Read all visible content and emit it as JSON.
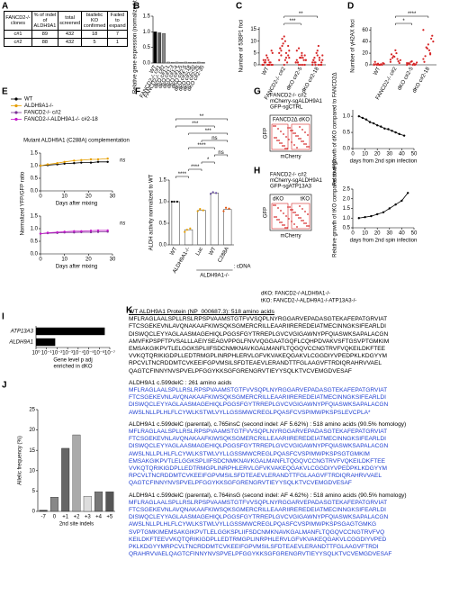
{
  "panel_labels": [
    "A",
    "B",
    "C",
    "D",
    "E",
    "F",
    "G",
    "H",
    "I",
    "J",
    "K"
  ],
  "table": {
    "header": [
      "FANCD2-/- clones",
      "% of indel of ALDH9A1",
      "total screened",
      "biallelic KO confirmed",
      "Failed to expand"
    ],
    "rows": [
      [
        "c#1",
        "89",
        "432",
        "18",
        "7"
      ],
      [
        "c#2",
        "88",
        "432",
        "5",
        "1"
      ]
    ]
  },
  "chart_data": [
    {
      "type": "bar",
      "ylabel": "Relative gene expression (normalized to WT)",
      "categories": [
        "WT",
        "FANCD2-/- c#1",
        "FANCD2-/- c#2",
        "dKO c#1-1",
        "dKO c#1-3",
        "dKO c#1-4",
        "dKO c#1-5",
        "dKO c#2-5",
        "dKO c#2-18",
        "dKO c#2-20",
        "dKO c#2-25",
        "dKO c#2-35"
      ],
      "values": [
        1.0,
        0.97,
        0.95,
        0.03,
        0.02,
        0.03,
        0.02,
        0.03,
        0.02,
        0.02,
        0.03,
        0.02
      ],
      "colors": [
        "#000000",
        "#555555",
        "#888888",
        "#bbbbbb",
        "#bbbbbb",
        "#bbbbbb",
        "#bbbbbb",
        "#bbbbbb",
        "#bbbbbb",
        "#bbbbbb",
        "#bbbbbb",
        "#bbbbbb"
      ],
      "ylim": [
        0,
        1.5
      ],
      "yticks": [
        {
          "value": 0,
          "label": "0.0"
        },
        {
          "value": 0.5,
          "label": "0.5"
        },
        {
          "value": 1,
          "label": "1.0"
        },
        {
          "value": 1.5,
          "label": "1.5"
        }
      ]
    },
    {
      "type": "strip",
      "ylabel": "Number of 53BP1 foci",
      "categories": [
        "WT",
        "FANCD2-/- c#2",
        "dKO c#2-5",
        "dKO c#2-18"
      ],
      "color": "#d62728",
      "groups": [
        [
          0,
          0,
          1,
          0,
          2,
          1,
          0,
          3,
          0,
          1,
          4,
          0,
          1,
          2,
          5,
          0,
          1,
          6,
          0,
          2
        ],
        [
          2,
          5,
          8,
          3,
          10,
          6,
          4,
          12,
          7,
          1,
          9,
          5,
          3,
          11,
          6,
          2,
          4,
          8,
          0,
          7
        ],
        [
          1,
          3,
          0,
          2,
          5,
          1,
          4,
          0,
          6,
          2,
          3,
          1,
          0,
          7,
          2,
          4,
          1,
          0,
          3,
          2
        ],
        [
          0,
          2,
          1,
          4,
          0,
          3,
          1,
          6,
          2,
          0,
          5,
          1,
          3,
          0,
          2,
          8,
          1,
          0,
          4,
          2
        ]
      ],
      "ylim": [
        0,
        16
      ],
      "yticks": [
        0,
        5,
        10,
        15
      ],
      "brackets": [
        {
          "from": 1,
          "to": 2,
          "label": "***"
        },
        {
          "from": 1,
          "to": 3,
          "label": "**"
        }
      ]
    },
    {
      "type": "strip",
      "ylabel": "Number of γH2AX foci",
      "categories": [
        "WT",
        "FANCD2-/- c#2",
        "dKO c#2-5",
        "dKO c#2-18"
      ],
      "color": "#d62728",
      "groups": [
        [
          0,
          1,
          0,
          2,
          0,
          1,
          3,
          0,
          5,
          0,
          2,
          1
        ],
        [
          5,
          10,
          15,
          8,
          20,
          12,
          3,
          25,
          18,
          6,
          14,
          9
        ],
        [
          0,
          2,
          1,
          4,
          0,
          3,
          1,
          6,
          2,
          0,
          5,
          3
        ],
        [
          10,
          20,
          30,
          40,
          25,
          15,
          50,
          35,
          5,
          45,
          28,
          60,
          18
        ]
      ],
      "ylim": [
        0,
        65
      ],
      "yticks": [
        0,
        20,
        40,
        60
      ],
      "brackets": [
        {
          "from": 1,
          "to": 2,
          "label": "*"
        },
        {
          "from": 1,
          "to": 3,
          "label": "****"
        }
      ]
    },
    {
      "type": "line",
      "title": "Mutant ALDH9A1 (C288A) complementation",
      "ylabel": "Normalized YFP/GFP ratio",
      "xlabel": "Days after mixing",
      "annotation": "ns",
      "x": [
        0,
        3,
        7,
        10,
        14,
        17,
        21,
        24,
        28
      ],
      "series": [
        {
          "name": "WT",
          "color": "#000000",
          "values": [
            1,
            1.02,
            1.05,
            1.08,
            1.1,
            1.12,
            1.12,
            1.15,
            1.15
          ]
        },
        {
          "name": "ALDH9A1-/-",
          "color": "#e69f00",
          "values": [
            1,
            1.05,
            1.1,
            1.15,
            1.2,
            1.22,
            1.25,
            1.25,
            1.28
          ]
        }
      ],
      "xlim": [
        0,
        30
      ],
      "xticks": [
        0,
        10,
        20,
        30
      ],
      "ylim": [
        0,
        1.5
      ],
      "yticks": [
        {
          "value": 0,
          "label": "0.0"
        },
        {
          "value": 0.5,
          "label": "0.5"
        },
        {
          "value": 1,
          "label": "1.0"
        },
        {
          "value": 1.5,
          "label": "1.5"
        }
      ]
    },
    {
      "type": "line",
      "xlabel": "Days after mixing",
      "annotation": "ns",
      "x": [
        0,
        3,
        7,
        10,
        14,
        17,
        21,
        24,
        28
      ],
      "series": [
        {
          "name": "FANCD2-/- c#2",
          "color": "#7b3294",
          "values": [
            0.8,
            0.82,
            0.83,
            0.85,
            0.85,
            0.86,
            0.86,
            0.87,
            0.88
          ]
        },
        {
          "name": "FANCD2-/-ALDH9A1-/- c#2-18",
          "color": "#c51bcb",
          "values": [
            0.8,
            0.84,
            0.86,
            0.88,
            0.9,
            0.9,
            0.92,
            0.93,
            0.93
          ]
        }
      ],
      "xlim": [
        0,
        30
      ],
      "xticks": [
        0,
        10,
        20,
        30
      ],
      "ylim": [
        0,
        1.5
      ],
      "yticks": [
        {
          "value": 0,
          "label": "0.0"
        },
        {
          "value": 0.5,
          "label": "0.5"
        },
        {
          "value": 1,
          "label": "1.0"
        },
        {
          "value": 1.5,
          "label": "1.5"
        }
      ]
    },
    {
      "type": "dotbar",
      "ylabel": "ALDH activity normalized to WT",
      "categories": [
        "WT",
        "ALDH9A1-/-",
        "Luc",
        "WT",
        "C288A"
      ],
      "group_label": "ALDH9A1-/-",
      "group_suffix": ": cDNA",
      "values": [
        1.0,
        0.35,
        0.8,
        1.2,
        0.82
      ],
      "colors": [
        "#000000",
        "#e69f00",
        "#e69f00",
        "#6a51a3",
        "#e6550d"
      ],
      "groups": [
        [
          1,
          1,
          1
        ],
        [
          0.3,
          0.38,
          0.35
        ],
        [
          0.78,
          0.8,
          0.83
        ],
        [
          1.18,
          1.2,
          1.22
        ],
        [
          0.78,
          0.84,
          0.86
        ]
      ],
      "ylim": [
        0,
        1.5
      ],
      "yticks": [
        {
          "value": 0,
          "label": "0.0"
        },
        {
          "value": 0.5,
          "label": "0.5"
        },
        {
          "value": 1,
          "label": "1.0"
        },
        {
          "value": 1.5,
          "label": "1.5"
        }
      ],
      "brackets": [
        {
          "from": 0,
          "to": 1,
          "label": "****"
        },
        {
          "from": 1,
          "to": 2,
          "label": "****"
        },
        {
          "from": 2,
          "to": 3,
          "label": "*"
        },
        {
          "from": 3,
          "to": 4,
          "label": "ns"
        },
        {
          "from": 1,
          "to": 3,
          "label": "****"
        },
        {
          "from": 2,
          "to": 4,
          "label": "ns"
        },
        {
          "from": 1,
          "to": 4,
          "label": "***"
        },
        {
          "from": 0,
          "to": 3,
          "label": "***"
        },
        {
          "from": 0,
          "to": 4,
          "label": "**"
        }
      ]
    },
    {
      "type": "line",
      "title_lines": [
        "FANCD2-/- c#2",
        "mCherry-sgALDH9A1",
        "GFP-sgCTRL"
      ],
      "facs": {
        "gate_a": "FANCD2Δ",
        "gate_b": "dKO",
        "y": "GFP",
        "x": "mCherry"
      },
      "ylabel": "Relative growth of dKO compared to FANCD2Δ",
      "xlabel": "days from 2nd spin infection",
      "x": [
        5,
        8,
        11,
        14,
        17,
        20,
        23,
        26,
        29,
        32,
        35,
        38,
        42
      ],
      "series": [
        {
          "color": "#000000",
          "values": [
            1.0,
            0.95,
            0.9,
            0.82,
            0.78,
            0.72,
            0.68,
            0.62,
            0.6,
            0.55,
            0.5,
            0.45,
            0.4
          ]
        }
      ],
      "xlim": [
        0,
        50
      ],
      "xticks": [
        0,
        10,
        20,
        30,
        40,
        50
      ],
      "ylim": [
        0,
        1.2
      ],
      "yticks": [
        {
          "value": 0,
          "label": "0.0"
        },
        {
          "value": 0.5,
          "label": "0.5"
        },
        {
          "value": 1,
          "label": "1.0"
        }
      ]
    },
    {
      "type": "line",
      "title_lines": [
        "FANCD2-/- c#2",
        "mCherry-sgALDH9A1",
        "GFP-sgATP13A3"
      ],
      "facs": {
        "gate_a": "dKO",
        "gate_b": "tKO",
        "y": "GFP",
        "x": "mCherry"
      },
      "ylabel": "Relative growth of tKO compared to dKO",
      "xlabel": "days from 2nd spin infection",
      "x": [
        5,
        10,
        15,
        20,
        25,
        30,
        35,
        40,
        45
      ],
      "series": [
        {
          "color": "#000000",
          "values": [
            1.0,
            1.05,
            1.1,
            1.2,
            1.3,
            1.5,
            1.7,
            1.9,
            2.3
          ]
        }
      ],
      "xlim": [
        0,
        50
      ],
      "xticks": [
        0,
        10,
        20,
        30,
        40,
        50
      ],
      "ylim": [
        0.5,
        2.5
      ],
      "yticks": [
        {
          "value": 0.5,
          "label": "0.5"
        },
        {
          "value": 1,
          "label": "1.0"
        },
        {
          "value": 1.5,
          "label": "1.5"
        },
        {
          "value": 2,
          "label": "2.0"
        },
        {
          "value": 2.5,
          "label": "2.5"
        }
      ]
    },
    {
      "type": "hbar",
      "categories": [
        "ATP13A3",
        "ALDH9A1"
      ],
      "values": [
        3e-07,
        0.015
      ],
      "color": "#000000",
      "xscale": "log",
      "xlabel": "Gene level p adj",
      "xlabel2": "enriched in dKO",
      "xlim": [
        1,
        1e-07
      ],
      "xticks": [
        {
          "value": 1,
          "label": "10⁰"
        },
        {
          "value": 0.1,
          "label": "10⁻¹"
        },
        {
          "value": 0.01,
          "label": "10⁻²"
        },
        {
          "value": 0.001,
          "label": "10⁻³"
        },
        {
          "value": 0.0001,
          "label": "10⁻⁴"
        },
        {
          "value": 1e-05,
          "label": "10⁻⁵"
        },
        {
          "value": 1e-06,
          "label": "10⁻⁶"
        },
        {
          "value": 1e-07,
          "label": "10⁻⁷"
        }
      ]
    },
    {
      "type": "bar",
      "ylabel": "Allelic frequency (%)",
      "xlabel": "2nd site indels",
      "categories": [
        "-7",
        "0",
        "+1",
        "+2",
        "+3",
        "+4",
        "+5"
      ],
      "values": [
        0.3,
        3.5,
        15.5,
        18.8,
        3.7,
        4.8,
        4.8
      ],
      "colors": [
        "#444444",
        "#888888",
        "#666666",
        "#aaaaaa",
        "#dddddd",
        "#777777",
        "#555555"
      ],
      "ylim": [
        0,
        25
      ],
      "yticks": [
        0,
        5,
        10,
        15,
        20,
        25
      ]
    }
  ],
  "notes": [
    "dKO: FANCD2-/-ALDH9A1-/-",
    "tKO: FANCD2-/-ALDH9A1-/-ATP13A3-/-"
  ],
  "panel_k": [
    {
      "header": "WT ALDH9A1 Protein (NP_000687.3): 518 amino acids",
      "color": "#000000",
      "lines": [
        "MFLRAGLAALSPLLRSLRPSPVAAMSTGTFVVSQPLNYRGGARVEPADASGTEKAFEPATGRVIAT",
        "FTCSGEKEVNLAVQNAKAAFKIWSQKSGMERCRILLEAARIIREREDEIATMECINNGKSIFEARLDI",
        "DISWQCLEYYAGLAASMAGEHIQLPGGSFGYTRREPLGVCVGIGAWNYPFQIASWKSAPALACGN",
        "AMVFKPSPFTPVSALLLAEIYSEAGVPPGLFNVVQGGAATGQFLCQHPDVAKVSFTGSVPTGMKIM",
        "EMSAKGIKPVTLELGGKSPLIIFSDCNMKNAVKGALMANFLTQGQVCCNGTRVFVQKEILDKFTEE",
        "VVKQTQRIKIGDPLLEDTRMGPLINRPHLERVLGFVKVAKEQGAKVLCGGDIYVPEDPKLKDGYYM",
        "RPCVLTNCRDDMTCVKEEIFGPVMSILSFDTEAEVLERANDTTFGLAAGVFTRDIQRAHRVVAEL",
        "QAGTCFINNYNVSPVELPFGGYKKSGFGRENGRVTIEYYSQLKTVCVEMGDVESAF"
      ]
    },
    {
      "header": "ALDH9A1 c.599delC : 261 amino acids",
      "color": "#1f3fd1",
      "lines": [
        "MFLRAGLAALSPLLRSLRPSPVAAMSTGTFVVSQPLNYRGGARVEPADASGTEKAFEPATGRVIAT",
        "FTCSGEKEVNLAVQNAKAAFKIWSQKSGMERCRILLEAARIIREREDEIATMECINNGKSIFEARLDI",
        "DISWQCLEYYAGLAASMAGEHIQLPGGSFGYTRREPLGVCVGIGAWNYPFQIASWKSAPALACGN",
        "AWSLNLLPLHLFLCYWLKSTWLVYLLGSSMWCREGLPQASFCVSPIMWPKSPSLEVCPLA*"
      ]
    },
    {
      "header": "ALDH9A1 c.599delC (parental), c.765insC (second indel: AF 5.62%) : 518 amino acids (90.5% homology)",
      "color": "#1f3fd1",
      "lines": [
        "MFLRAGLAALSPLLRSLRPSPVAAMSTGTFVVSQPLNYRGGARVEPADASGTEKAFEPATGRVIAT",
        "FTCSGEKEVNLAVQNAKAAFKIWSQKSGMERCRILLEAARIIREREDEIATMECINNGKSIFEARLDI",
        "DISWQCLEYYAGLAASMAGEHIQLPGGSFGYTRREPLGVCVGIGAWNYPFQIASWKSAPALACGN",
        "AWSLNLLPLHLFLCYWLKSTWLVYLLGSSMWCREGLPQASFCVSPIMWPKSPSGTGMKIM",
        "EMSAKGIKPVTLELGGKSPLIIFSDCNMKNAVKGALMANFLTQGQVCCNGTRVFVQKEILDKFTEE",
        "VVKQTQRIKIGDPLLEDTRMGPLINRPHLERVLGFVKVAKEQGAKVLCGGDIYVPEDPKLKDGYYM",
        "RPCVLTNCRDDMTCVKEEIFGPVMSILSFDTEAEVLERANDTTFGLAAGVFTRDIQRAHRVVAEL",
        "QAGTCFINNYNVSPVELPFGGYKKSGFGRENGRVTIEYYSQLKTVCVEMGDVESAF"
      ]
    },
    {
      "header": "ALDH9A1 c.599delC (parental), c.764insG (second indel: AF 4.62%) : 518 amino acids (90.5% homology)",
      "color": "#1f3fd1",
      "lines": [
        "MFLRAGLAALSPLLRSLRPSPVAAMSTGTFVVSQPLNYRGGARVEPADASGTEKAFEPATGRVIAT",
        "FTCSGEKEVNLAVQNAKAAFKIWSQKSGMERCRILLEAARIIREREDEIATMECINNGKSIFEARLDI",
        "DISWQCLEYYAGLAASMAGEHIQLPGGSFGYTRREPLGVCVGIGAWNYPFQIASWKSAPALACGN",
        "AWSLNLLPLHLFLCYWLKSTWLVYLLGSSMWCREGLPQASFCVSPIMWPKSPSGAGTGMKG",
        "SVPTGMKIMEMSAKGIKPVTLELGGKSPLIIFSDCNMKNAVKGALMANFLTQGQVCCNGTRVFVQ",
        "KEILDKFTEEVVKQTQRIKIGDPLLEDTRMGPLINRPHLERVLGFVKVAKEQGAKVLCGGDIYVPED",
        "PKLKDGYYMRPCVLTNCRDDMTCVKEEIFGPVMSILSFDTEAEVLERANDTTFGLAAGVFTRDI",
        "QRAHRVVAELQAGTCFINNYNVSPVELPFGGYKKSGFGRENGRVTIEYYSQLKTVCVEMGDVESAF"
      ]
    }
  ]
}
